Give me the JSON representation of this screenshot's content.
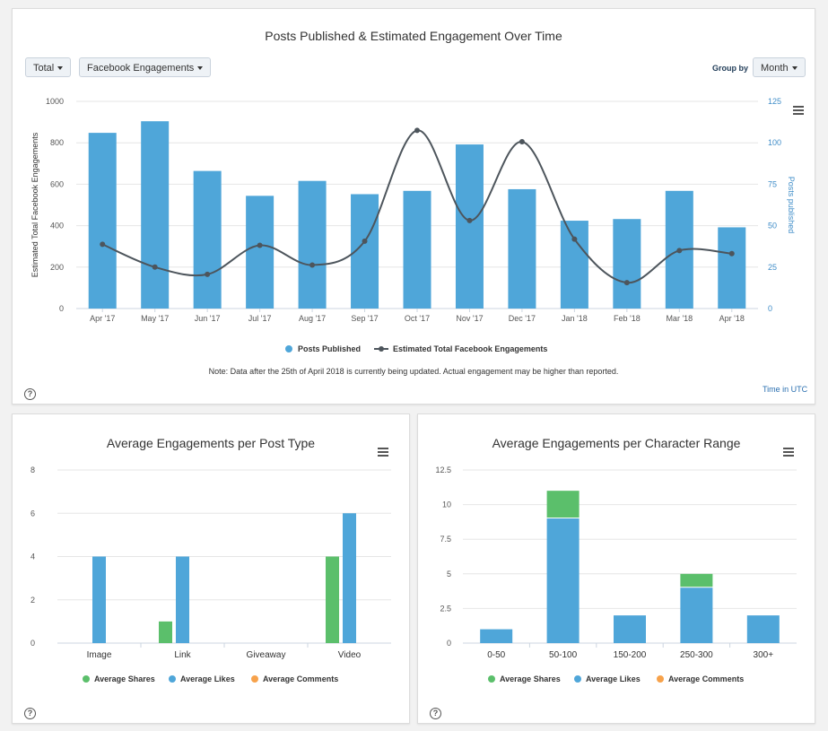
{
  "top_panel": {
    "title": "Posts Published & Estimated Engagement Over Time",
    "total_button": "Total",
    "metric_button": "Facebook Engagements",
    "group_by_label": "Group by",
    "group_by_button": "Month",
    "note": "Note: Data after the 25th of April 2018 is currently being updated. Actual engagement may be higher than reported.",
    "time_label": "Time in UTC",
    "help_glyph": "?"
  },
  "bottom_left_panel": {
    "title": "Average Engagements per Post Type",
    "help_glyph": "?"
  },
  "bottom_right_panel": {
    "title": "Average Engagements per Character Range",
    "help_glyph": "?"
  },
  "colors": {
    "blue": "#4fa6d9",
    "green": "#5bbf6b",
    "orange": "#f7a24b",
    "line": "#4d555c",
    "axis_right": "#3f8dc8"
  },
  "chart_data": [
    {
      "type": "bar",
      "title": "Posts Published & Estimated Engagement Over Time",
      "categories": [
        "Apr '17",
        "May '17",
        "Jun '17",
        "Jul '17",
        "Aug '17",
        "Sep '17",
        "Oct '17",
        "Nov '17",
        "Dec '17",
        "Jan '18",
        "Feb '18",
        "Mar '18",
        "Apr '18"
      ],
      "series": [
        {
          "name": "Posts Published",
          "type": "bar",
          "axis": "right",
          "values": [
            106,
            113,
            83,
            68,
            77,
            69,
            71,
            99,
            72,
            53,
            54,
            71,
            49
          ]
        },
        {
          "name": "Estimated Total Facebook Engagements",
          "type": "line",
          "axis": "left",
          "values": [
            310,
            200,
            165,
            305,
            210,
            325,
            860,
            425,
            805,
            335,
            125,
            280,
            265
          ]
        }
      ],
      "ylabel": "Estimated Total Facebook Engagements",
      "ylabel_right": "Posts published",
      "ylim": [
        0,
        1000
      ],
      "yticks": [
        "0",
        "200",
        "400",
        "600",
        "800",
        "1000"
      ],
      "ylim_right": [
        0,
        125
      ],
      "yticks_right": [
        "0",
        "25",
        "50",
        "75",
        "100",
        "125"
      ]
    },
    {
      "type": "bar",
      "title": "Average Engagements per Post Type",
      "categories": [
        "Image",
        "Link",
        "Giveaway",
        "Video"
      ],
      "series": [
        {
          "name": "Average Shares",
          "values": [
            0,
            1,
            0,
            4
          ]
        },
        {
          "name": "Average Likes",
          "values": [
            4,
            4,
            0,
            6
          ]
        },
        {
          "name": "Average Comments",
          "values": [
            0,
            0,
            0,
            0
          ]
        }
      ],
      "ylim": [
        0,
        8
      ],
      "yticks": [
        "0",
        "2",
        "4",
        "6",
        "8"
      ]
    },
    {
      "type": "bar",
      "stacked": true,
      "title": "Average Engagements per Character Range",
      "categories": [
        "0-50",
        "50-100",
        "150-200",
        "250-300",
        "300+"
      ],
      "series": [
        {
          "name": "Average Shares",
          "values": [
            0,
            2,
            0,
            1,
            0
          ]
        },
        {
          "name": "Average Likes",
          "values": [
            1,
            9,
            2,
            4,
            2
          ]
        },
        {
          "name": "Average Comments",
          "values": [
            0,
            0,
            0,
            0,
            0
          ]
        }
      ],
      "ylim": [
        0,
        12.5
      ],
      "yticks": [
        "0",
        "2.5",
        "5",
        "7.5",
        "10",
        "12.5"
      ]
    }
  ]
}
